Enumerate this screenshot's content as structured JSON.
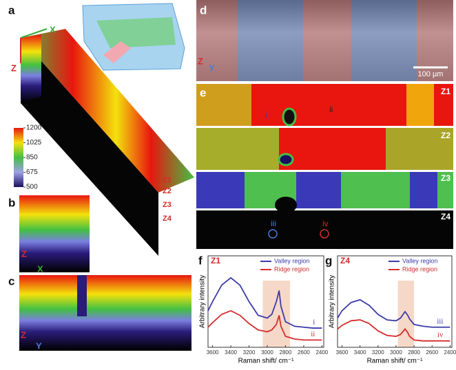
{
  "figure": {
    "panel_labels": [
      "a",
      "b",
      "c",
      "d",
      "e",
      "f",
      "g"
    ],
    "panel_a": {
      "axes": [
        "X",
        "Z"
      ],
      "layers": [
        "Z1",
        "Z2",
        "Z3",
        "Z4"
      ]
    },
    "panel_b": {
      "axes": [
        "Z",
        "X"
      ]
    },
    "panel_c": {
      "axes": [
        "Z",
        "Y"
      ]
    },
    "colorbar": {
      "lim": [
        500,
        1200
      ],
      "ticks": [
        1200,
        1025,
        850,
        675,
        500
      ]
    },
    "panel_d": {
      "axes": [
        "Z",
        "Y"
      ],
      "scale_bar": "100 µm"
    },
    "panel_e": {
      "rows": [
        "Z1",
        "Z2",
        "Z3",
        "Z4"
      ],
      "markers": [
        "i",
        "ii",
        "iii",
        "iv"
      ]
    }
  },
  "chart_data": [
    {
      "type": "line",
      "title": "Z1",
      "xlabel": "Raman shift/ cm⁻¹",
      "ylabel": "Arbitrary intensity",
      "x": [
        3650,
        3600,
        3500,
        3400,
        3300,
        3200,
        3100,
        3000,
        2950,
        2900,
        2870,
        2850,
        2800,
        2700,
        2600,
        2500,
        2400
      ],
      "xlim": [
        3650,
        2380
      ],
      "xticks": [
        3600,
        3400,
        3200,
        3000,
        2800,
        2600,
        2400
      ],
      "ylim": [
        0,
        10
      ],
      "highlight": [
        3050,
        2750
      ],
      "legend": "upper right",
      "series": [
        {
          "name": "Valley region",
          "color": "#3a3aa8",
          "label": "i",
          "values": [
            4.0,
            5.0,
            6.8,
            7.6,
            6.8,
            5.0,
            3.5,
            3.2,
            3.6,
            5.0,
            6.2,
            4.5,
            2.8,
            2.3,
            2.2,
            2.1,
            2.1
          ]
        },
        {
          "name": "Ridge region",
          "color": "#d62a2a",
          "label": "ii",
          "values": [
            2.2,
            2.7,
            3.6,
            4.0,
            3.5,
            2.6,
            1.9,
            1.7,
            1.9,
            2.5,
            3.5,
            2.3,
            1.2,
            0.9,
            0.8,
            0.8,
            0.8
          ]
        }
      ]
    },
    {
      "type": "line",
      "title": "Z4",
      "xlabel": "Raman shift/ cm⁻¹",
      "ylabel": "Arbitrary intensity",
      "x": [
        3650,
        3600,
        3500,
        3400,
        3300,
        3200,
        3100,
        3000,
        2950,
        2900,
        2870,
        2850,
        2800,
        2700,
        2600,
        2500,
        2400
      ],
      "xlim": [
        3650,
        2380
      ],
      "xticks": [
        3600,
        3400,
        3200,
        3000,
        2800,
        2600,
        2400
      ],
      "ylim": [
        0,
        10
      ],
      "highlight": [
        2980,
        2800
      ],
      "legend": "upper right",
      "series": [
        {
          "name": "Valley region",
          "color": "#3a3aa8",
          "label": "iii",
          "values": [
            3.2,
            4.0,
            4.9,
            5.2,
            4.6,
            3.6,
            3.0,
            2.9,
            3.2,
            3.9,
            3.5,
            3.1,
            2.5,
            2.3,
            2.2,
            2.2,
            2.2
          ]
        },
        {
          "name": "Ridge region",
          "color": "#d62a2a",
          "label": "iv",
          "values": [
            2.0,
            2.4,
            2.9,
            3.0,
            2.6,
            1.8,
            1.3,
            1.2,
            1.4,
            2.0,
            1.6,
            1.2,
            0.8,
            0.7,
            0.7,
            0.7,
            0.7
          ]
        }
      ]
    }
  ]
}
